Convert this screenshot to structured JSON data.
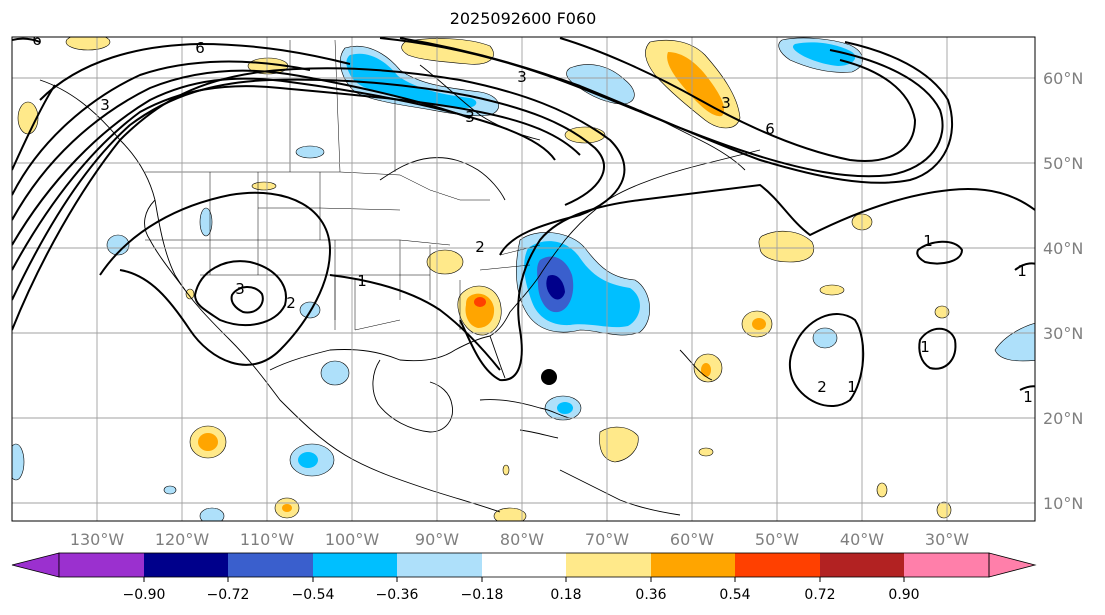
{
  "title": "2025092600 F060",
  "map": {
    "lon_ticks": [
      "130°W",
      "120°W",
      "110°W",
      "100°W",
      "90°W",
      "80°W",
      "70°W",
      "60°W",
      "50°W",
      "40°W",
      "30°W"
    ],
    "lat_ticks": [
      "60°N",
      "50°N",
      "40°N",
      "30°N",
      "20°N",
      "10°N"
    ],
    "contour_labels": [
      "6",
      "6",
      "3",
      "3",
      "3",
      "2",
      "2",
      "1",
      "1",
      "1",
      "3",
      "6",
      "1",
      "1",
      "2",
      "1",
      "3"
    ]
  },
  "colorbar": {
    "tick_labels": [
      "−0.90",
      "−0.72",
      "−0.54",
      "−0.36",
      "−0.18",
      "0.18",
      "0.36",
      "0.54",
      "0.72",
      "0.90"
    ],
    "colors": [
      "#9b30cf",
      "#00008b",
      "#3a5fcd",
      "#00bfff",
      "#aee0fa",
      "#ffffff",
      "#ffe98a",
      "#ffa500",
      "#ff4000",
      "#b22222",
      "#ff7faa"
    ]
  }
}
